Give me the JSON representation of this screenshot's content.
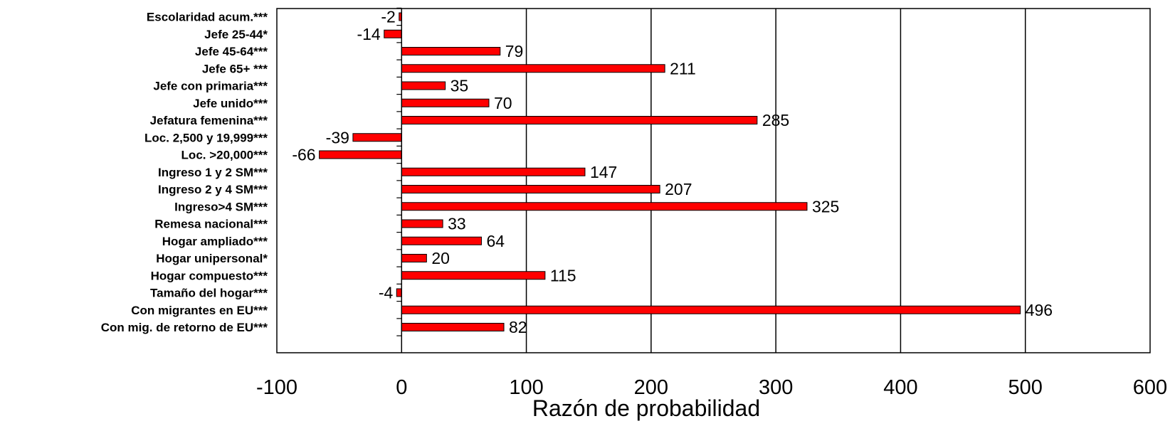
{
  "chart_data": {
    "type": "bar",
    "orientation": "horizontal",
    "xlabel": "Razón de probabilidad",
    "ylabel": "",
    "xlim": [
      -100,
      600
    ],
    "xticks": [
      -100,
      0,
      100,
      200,
      300,
      400,
      500,
      600
    ],
    "xtick_labels": [
      "-100",
      "0",
      "100",
      "200",
      "300",
      "400",
      "500",
      "600"
    ],
    "grid": "vertical",
    "bar_color": "#ff0000",
    "categories": [
      "Escolaridad acum.***",
      "Jefe 25-44*",
      "Jefe 45-64***",
      "Jefe 65+ ***",
      "Jefe con primaria***",
      "Jefe unido***",
      "Jefatura femenina***",
      "Loc. 2,500 y 19,999***",
      "Loc. >20,000***",
      "Ingreso 1 y 2  SM***",
      "Ingreso 2 y 4 SM***",
      "Ingreso>4 SM***",
      "Remesa nacional***",
      "Hogar ampliado***",
      "Hogar unipersonal*",
      "Hogar compuesto***",
      "Tamaño del hogar***",
      "Con  migrantes en EU***",
      "Con mig. de retorno de EU***"
    ],
    "values": [
      -2,
      -14,
      79,
      211,
      35,
      70,
      285,
      -39,
      -66,
      147,
      207,
      325,
      33,
      64,
      20,
      115,
      -4,
      496,
      82
    ],
    "value_labels": [
      "-2",
      "-14",
      "79",
      "211",
      "35",
      "70",
      "285",
      "-39",
      "-66",
      "147",
      "207",
      "325",
      "33",
      "64",
      "20",
      "115",
      "-4",
      "496",
      "82"
    ]
  }
}
